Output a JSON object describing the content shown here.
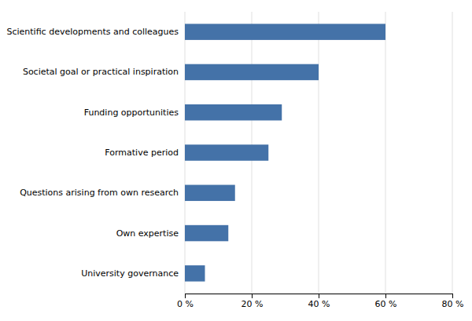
{
  "chart_data": {
    "type": "bar",
    "orientation": "horizontal",
    "categories": [
      "University governance",
      "Own expertise",
      "Questions arising from own research",
      "Formative period",
      "Funding opportunities",
      "Societal goal or practical inspiration",
      "Scientific developments and colleagues"
    ],
    "values": [
      6,
      13,
      15,
      25,
      29,
      40,
      60
    ],
    "color": "#4472a8",
    "xlim": [
      0,
      80
    ],
    "xticks": [
      {
        "value": 0,
        "label": "0 %"
      },
      {
        "value": 20,
        "label": "20 %"
      },
      {
        "value": 40,
        "label": "40 %"
      },
      {
        "value": 60,
        "label": "60 %"
      },
      {
        "value": 80,
        "label": "80 %"
      }
    ],
    "grid": true
  }
}
